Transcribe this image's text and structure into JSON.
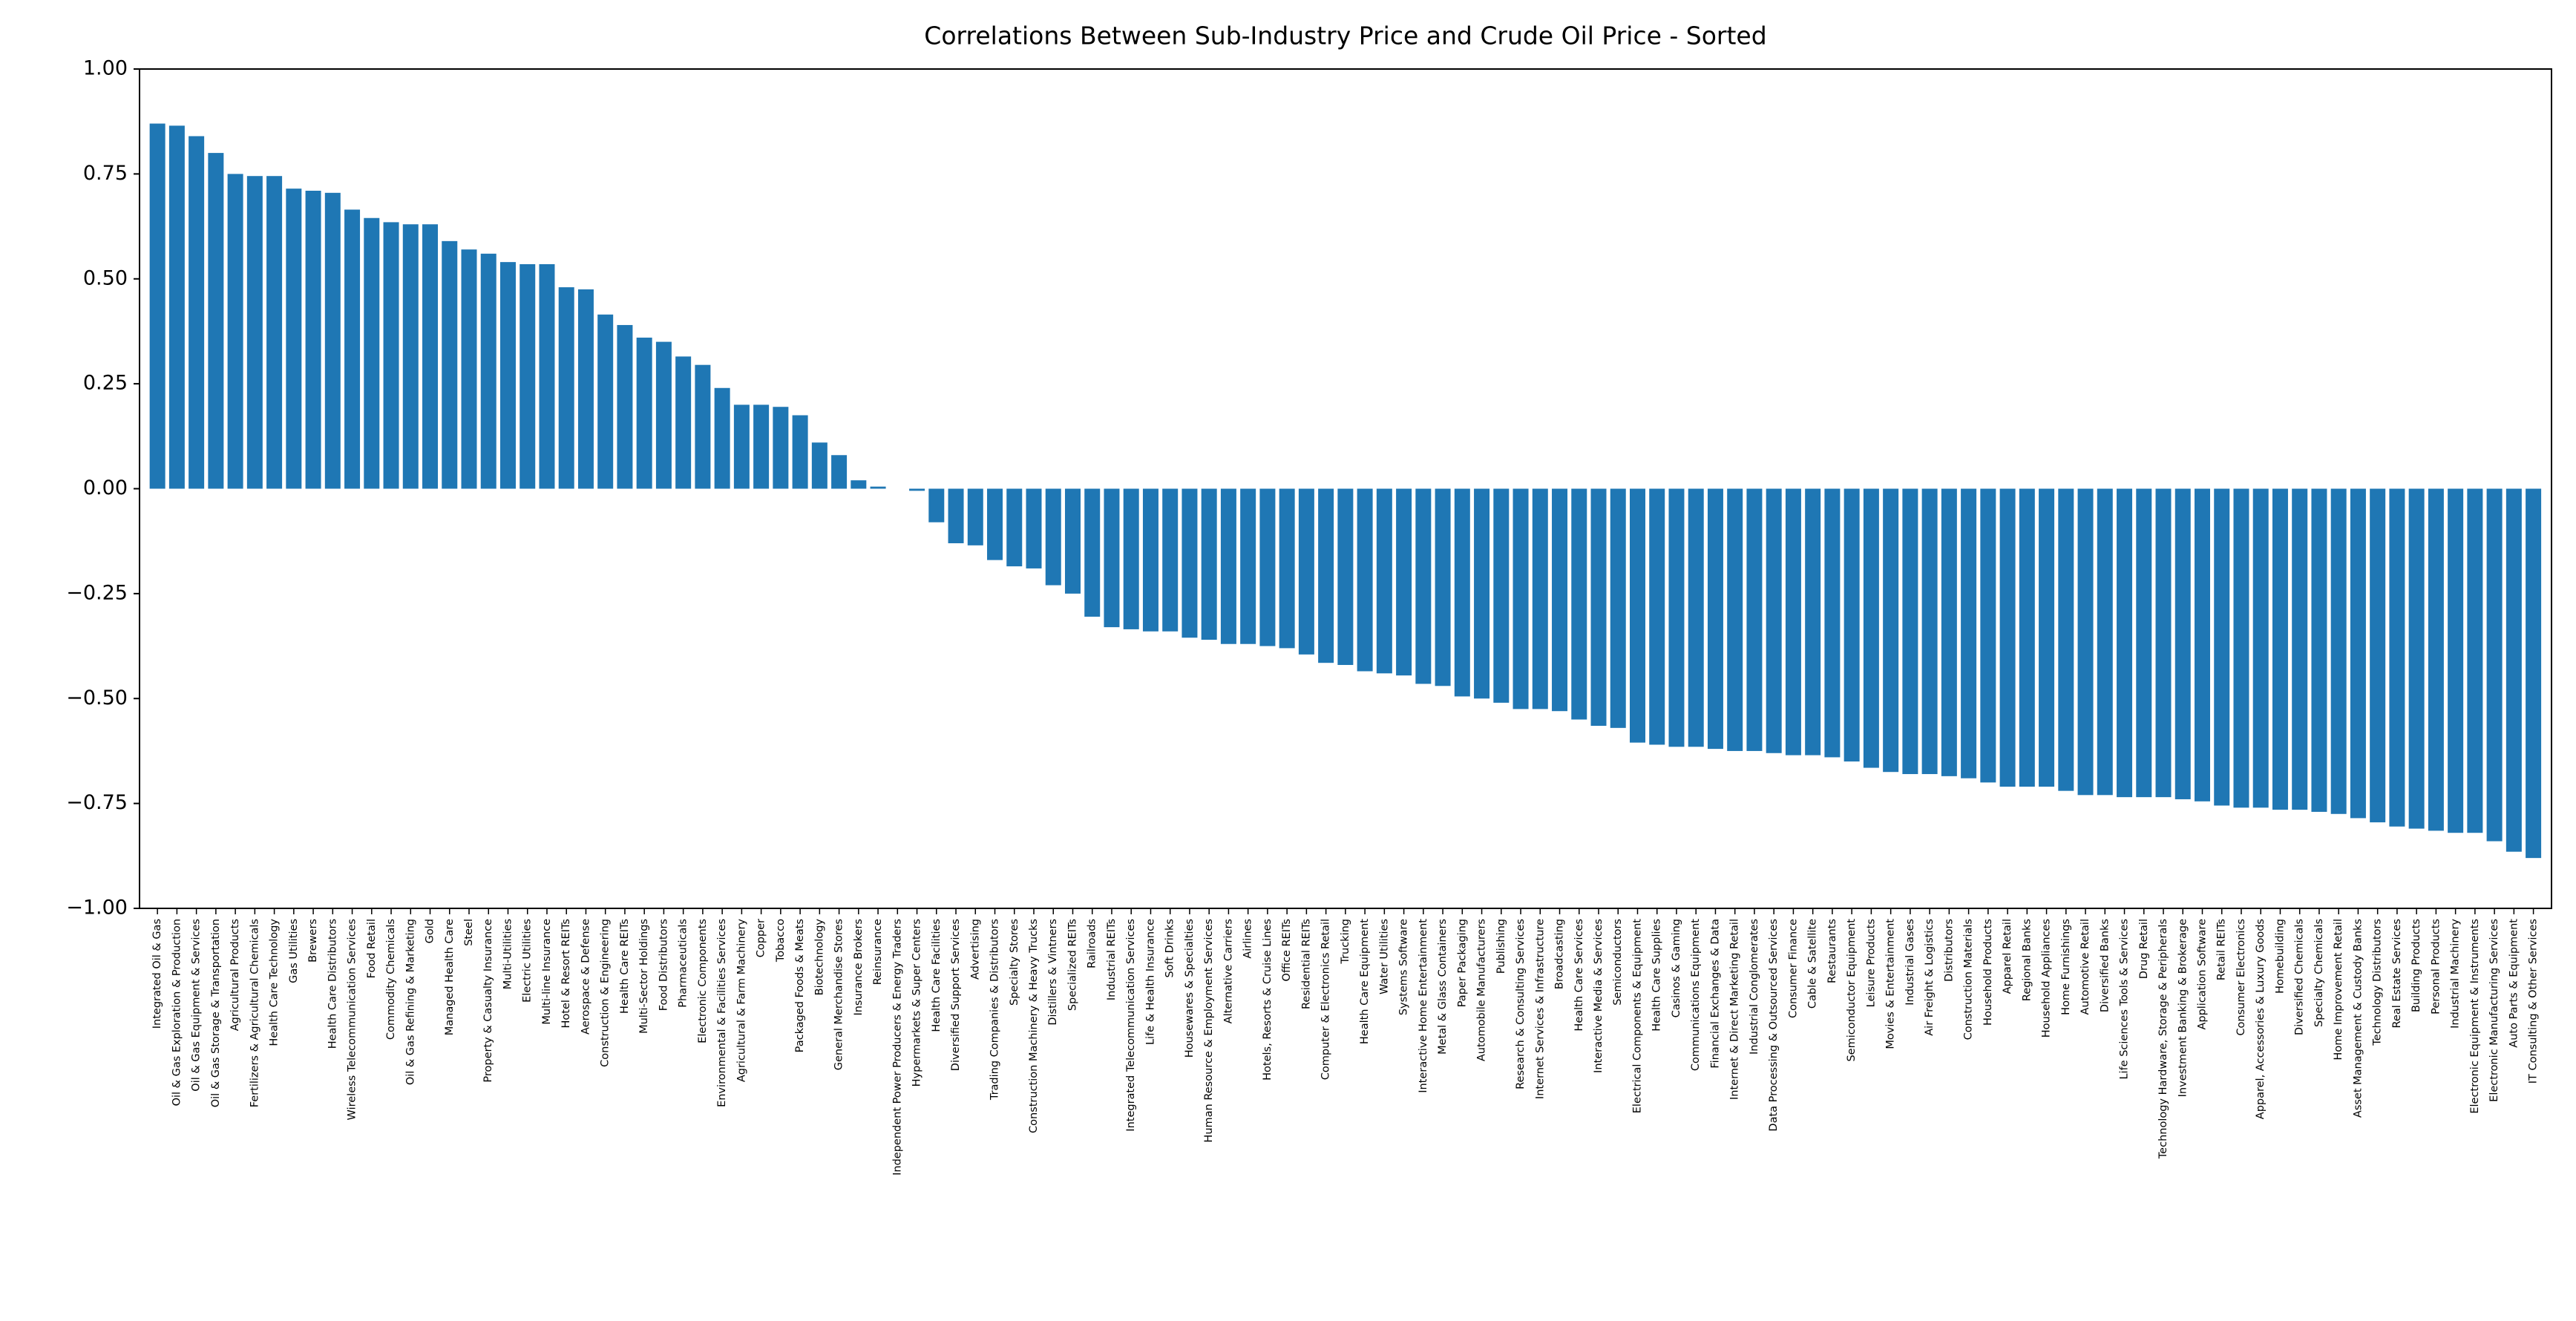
{
  "chart_data": {
    "type": "bar",
    "title": "Correlations Between Sub-Industry Price and Crude Oil Price - Sorted",
    "categories": [
      "Integrated Oil & Gas",
      "Oil & Gas Exploration & Production",
      "Oil & Gas Equipment & Services",
      "Oil & Gas Storage & Transportation",
      "Agricultural Products",
      "Fertilizers & Agricultural Chemicals",
      "Health Care Technology",
      "Gas Utilities",
      "Brewers",
      "Health Care Distributors",
      "Wireless Telecommunication Services",
      "Food Retail",
      "Commodity Chemicals",
      "Oil & Gas Refining & Marketing",
      "Gold",
      "Managed Health Care",
      "Steel",
      "Property & Casualty Insurance",
      "Multi-Utilities",
      "Electric Utilities",
      "Multi-line Insurance",
      "Hotel & Resort REITs",
      "Aerospace & Defense",
      "Construction & Engineering",
      "Health Care REITs",
      "Multi-Sector Holdings",
      "Food Distributors",
      "Pharmaceuticals",
      "Electronic Components",
      "Environmental & Facilities Services",
      "Agricultural & Farm Machinery",
      "Copper",
      "Tobacco",
      "Packaged Foods & Meats",
      "Biotechnology",
      "General Merchandise Stores",
      "Insurance Brokers",
      "Reinsurance",
      "Independent Power Producers & Energy Traders",
      "Hypermarkets & Super Centers",
      "Health Care Facilities",
      "Diversified Support Services",
      "Advertising",
      "Trading Companies & Distributors",
      "Specialty Stores",
      "Construction Machinery & Heavy Trucks",
      "Distillers & Vintners",
      "Specialized REITs",
      "Railroads",
      "Industrial REITs",
      "Integrated Telecommunication Services",
      "Life & Health Insurance",
      "Soft Drinks",
      "Housewares & Specialties",
      "Human Resource & Employment Services",
      "Alternative Carriers",
      "Airlines",
      "Hotels, Resorts & Cruise Lines",
      "Office REITs",
      "Residential REITs",
      "Computer & Electronics Retail",
      "Trucking",
      "Health Care Equipment",
      "Water Utilities",
      "Systems Software",
      "Interactive Home Entertainment",
      "Metal & Glass Containers",
      "Paper Packaging",
      "Automobile Manufacturers",
      "Publishing",
      "Research & Consulting Services",
      "Internet Services & Infrastructure",
      "Broadcasting",
      "Health Care Services",
      "Interactive Media & Services",
      "Semiconductors",
      "Electrical Components & Equipment",
      "Health Care Supplies",
      "Casinos & Gaming",
      "Communications Equipment",
      "Financial Exchanges & Data",
      "Internet & Direct Marketing Retail",
      "Industrial Conglomerates",
      "Data Processing & Outsourced Services",
      "Consumer Finance",
      "Cable & Satellite",
      "Restaurants",
      "Semiconductor Equipment",
      "Leisure Products",
      "Movies & Entertainment",
      "Industrial Gases",
      "Air Freight & Logistics",
      "Distributors",
      "Construction Materials",
      "Household Products",
      "Apparel Retail",
      "Regional Banks",
      "Household Appliances",
      "Home Furnishings",
      "Automotive Retail",
      "Diversified Banks",
      "Life Sciences Tools & Services",
      "Drug Retail",
      "Technology Hardware, Storage & Peripherals",
      "Investment Banking & Brokerage",
      "Application Software",
      "Retail REITs",
      "Consumer Electronics",
      "Apparel, Accessories & Luxury Goods",
      "Homebuilding",
      "Diversified Chemicals",
      "Specialty Chemicals",
      "Home Improvement Retail",
      "Asset Management & Custody Banks",
      "Technology Distributors",
      "Real Estate Services",
      "Building Products",
      "Personal Products",
      "Industrial Machinery",
      "Electronic Equipment & Instruments",
      "Electronic Manufacturing Services",
      "Auto Parts & Equipment",
      "IT Consulting & Other Services"
    ],
    "values": [
      0.87,
      0.865,
      0.84,
      0.8,
      0.75,
      0.745,
      0.745,
      0.715,
      0.71,
      0.705,
      0.665,
      0.645,
      0.635,
      0.63,
      0.63,
      0.59,
      0.57,
      0.56,
      0.54,
      0.535,
      0.535,
      0.48,
      0.475,
      0.415,
      0.39,
      0.36,
      0.35,
      0.315,
      0.295,
      0.24,
      0.2,
      0.2,
      0.195,
      0.175,
      0.11,
      0.08,
      0.02,
      0.005,
      0.0,
      -0.005,
      -0.08,
      -0.13,
      -0.135,
      -0.17,
      -0.185,
      -0.19,
      -0.23,
      -0.25,
      -0.305,
      -0.33,
      -0.335,
      -0.34,
      -0.34,
      -0.355,
      -0.36,
      -0.37,
      -0.37,
      -0.375,
      -0.38,
      -0.395,
      -0.415,
      -0.42,
      -0.435,
      -0.44,
      -0.445,
      -0.465,
      -0.47,
      -0.495,
      -0.5,
      -0.51,
      -0.525,
      -0.525,
      -0.53,
      -0.55,
      -0.565,
      -0.57,
      -0.605,
      -0.61,
      -0.615,
      -0.615,
      -0.62,
      -0.625,
      -0.625,
      -0.63,
      -0.635,
      -0.635,
      -0.64,
      -0.65,
      -0.665,
      -0.675,
      -0.68,
      -0.68,
      -0.685,
      -0.69,
      -0.7,
      -0.71,
      -0.71,
      -0.71,
      -0.72,
      -0.73,
      -0.73,
      -0.735,
      -0.735,
      -0.735,
      -0.74,
      -0.745,
      -0.755,
      -0.76,
      -0.76,
      -0.765,
      -0.765,
      -0.77,
      -0.775,
      -0.785,
      -0.795,
      -0.805,
      -0.81,
      -0.815,
      -0.82,
      -0.82,
      -0.84,
      -0.865,
      -0.88
    ],
    "color": "#1f77b4",
    "ylim": [
      -1,
      1
    ],
    "yticks": [
      {
        "value": -1,
        "label": "−1.00"
      },
      {
        "value": -0.75,
        "label": "−0.75"
      },
      {
        "value": -0.5,
        "label": "−0.50"
      },
      {
        "value": -0.25,
        "label": "−0.25"
      },
      {
        "value": 0,
        "label": "0.00"
      },
      {
        "value": 0.25,
        "label": "0.25"
      },
      {
        "value": 0.5,
        "label": "0.50"
      },
      {
        "value": 0.75,
        "label": "0.75"
      },
      {
        "value": 1,
        "label": "1.00"
      }
    ],
    "grid": false
  }
}
